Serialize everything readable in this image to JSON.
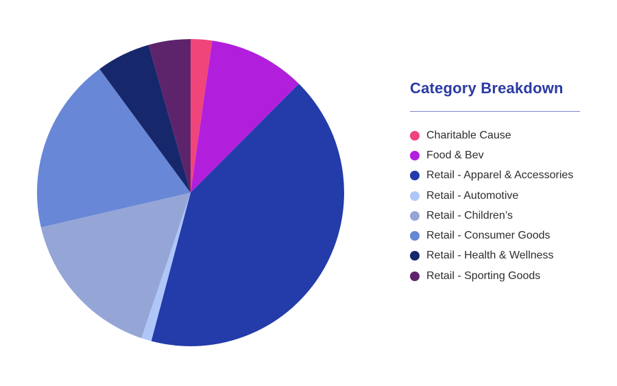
{
  "chart_data": {
    "type": "pie",
    "title": "Category Breakdown",
    "legend": "right",
    "slices": [
      {
        "label": "Charitable Cause",
        "value": 2.3,
        "color": "#f0457a"
      },
      {
        "label": "Food & Bev",
        "value": 10.4,
        "color": "#b21fdc"
      },
      {
        "label": "Retail - Apparel & Accessories",
        "value": 42.5,
        "color": "#233caa"
      },
      {
        "label": "Retail - Automotive",
        "value": 1.1,
        "color": "#afc6f8"
      },
      {
        "label": "Retail - Children’s",
        "value": 16.5,
        "color": "#95a5d6"
      },
      {
        "label": "Retail - Consumer Goods",
        "value": 18.9,
        "color": "#6887d6"
      },
      {
        "label": "Retail - Health & Wellness",
        "value": 5.8,
        "color": "#17276b"
      },
      {
        "label": "Retail - Sporting Goods",
        "value": 4.5,
        "color": "#5e246b"
      }
    ]
  }
}
